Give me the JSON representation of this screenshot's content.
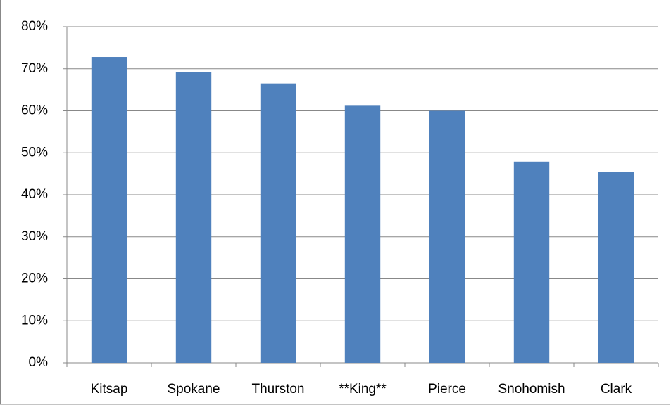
{
  "chart_data": {
    "type": "bar",
    "categories": [
      "Kitsap",
      "Spokane",
      "Thurston",
      "**King**",
      "Pierce",
      "Snohomish",
      "Clark"
    ],
    "values": [
      72.8,
      69.2,
      66.5,
      61.2,
      60,
      47.9,
      45.5
    ],
    "color": "#4f81bd",
    "ylim": [
      0,
      80
    ],
    "yticks": [
      {
        "value": 0,
        "label": "0%"
      },
      {
        "value": 10,
        "label": "10%"
      },
      {
        "value": 20,
        "label": "20%"
      },
      {
        "value": 30,
        "label": "30%"
      },
      {
        "value": 40,
        "label": "40%"
      },
      {
        "value": 50,
        "label": "50%"
      },
      {
        "value": 60,
        "label": "60%"
      },
      {
        "value": 70,
        "label": "70%"
      },
      {
        "value": 80,
        "label": "80%"
      }
    ],
    "grid": true
  }
}
